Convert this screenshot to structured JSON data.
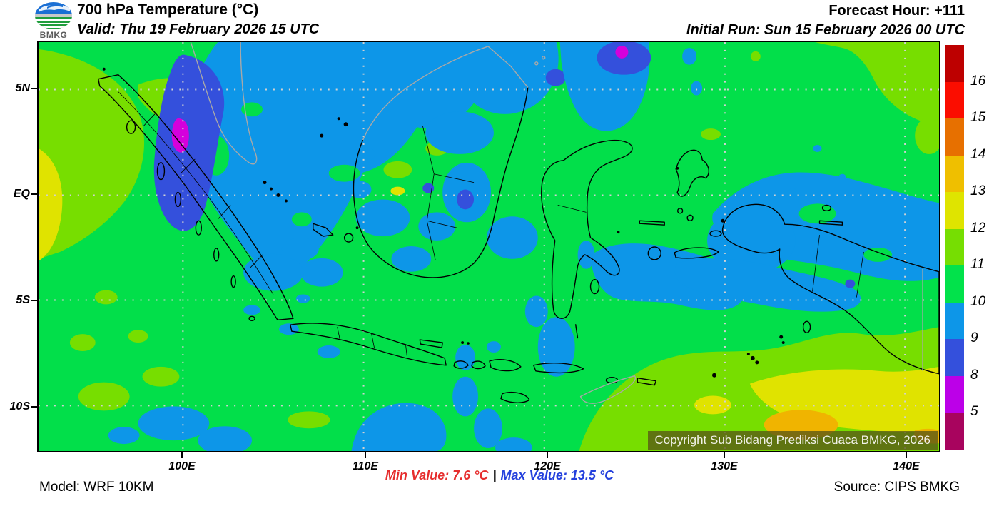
{
  "header": {
    "logo_text": "BMKG",
    "title": "700 hPa Temperature (°C)",
    "valid": "Valid: Thu 19 February 2026 15 UTC",
    "forecast_hour": "Forecast Hour: +111",
    "initial_run": "Initial Run: Sun 15 February 2026 00 UTC"
  },
  "map": {
    "lat_labels": [
      "5N",
      "EQ",
      "5S",
      "10S"
    ],
    "lon_labels": [
      "100E",
      "110E",
      "120E",
      "130E",
      "140E"
    ],
    "copyright": "Copyright Sub Bidang Prediksi Cuaca BMKG, 2026"
  },
  "colorbar": {
    "segments": [
      {
        "color": "#bd0000",
        "label": "16"
      },
      {
        "color": "#fb0d00",
        "label": "15"
      },
      {
        "color": "#e77000",
        "label": "14"
      },
      {
        "color": "#efbf00",
        "label": "13"
      },
      {
        "color": "#dfe400",
        "label": "12"
      },
      {
        "color": "#76de02",
        "label": "11"
      },
      {
        "color": "#02e24b",
        "label": "10"
      },
      {
        "color": "#0d96e8",
        "label": "9"
      },
      {
        "color": "#3450dc",
        "label": "8"
      },
      {
        "color": "#bc00e8",
        "label": "5"
      },
      {
        "color": "#a8045e",
        "label": ""
      }
    ]
  },
  "footer": {
    "model": "Model: WRF 10KM",
    "min_value": "Min Value: 7.6 °C",
    "separator": "|",
    "max_value": "Max Value: 13.5 °C",
    "source": "Source: CIPS BMKG",
    "min_color": "#e62e2e",
    "max_color": "#2440dd"
  }
}
